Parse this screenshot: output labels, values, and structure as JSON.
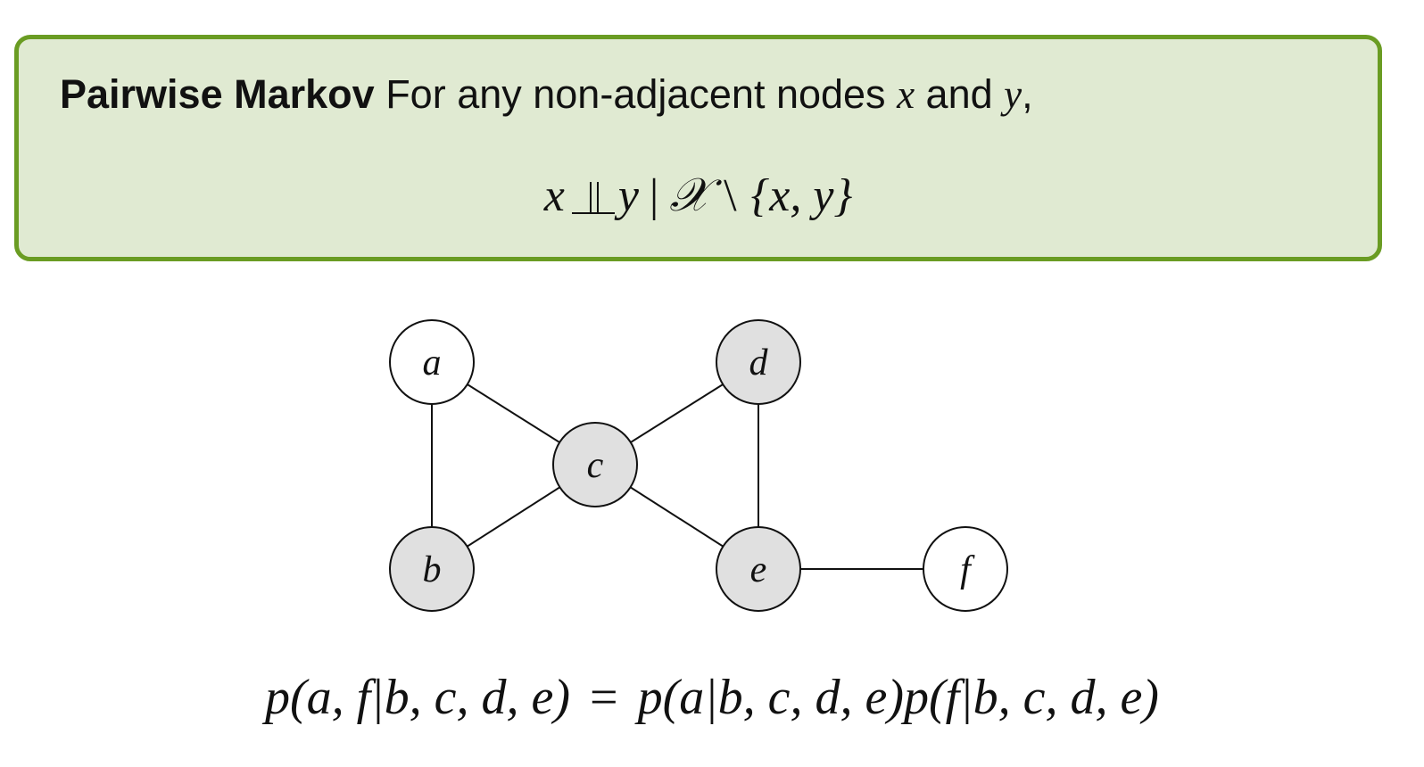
{
  "definition": {
    "term": "Pairwise Markov",
    "text_before_x": " For any non-adjacent nodes ",
    "var_x": "x",
    "text_between": " and ",
    "var_y": "y",
    "text_after": ",",
    "formula": {
      "left_var": "x",
      "right_var": "y",
      "given_bar": "|",
      "set_symbol": "𝒳",
      "setminus": "\\",
      "removed_set": "{x, y}"
    },
    "colors": {
      "box_fill": "#e0ead2",
      "box_border": "#6a9c23"
    }
  },
  "graph": {
    "nodes": [
      {
        "id": "a",
        "label": "a",
        "shaded": false
      },
      {
        "id": "b",
        "label": "b",
        "shaded": true
      },
      {
        "id": "c",
        "label": "c",
        "shaded": true
      },
      {
        "id": "d",
        "label": "d",
        "shaded": true
      },
      {
        "id": "e",
        "label": "e",
        "shaded": true
      },
      {
        "id": "f",
        "label": "f",
        "shaded": false
      }
    ],
    "edges": [
      [
        "a",
        "b"
      ],
      [
        "a",
        "c"
      ],
      [
        "b",
        "c"
      ],
      [
        "c",
        "d"
      ],
      [
        "c",
        "e"
      ],
      [
        "d",
        "e"
      ],
      [
        "e",
        "f"
      ]
    ],
    "colors": {
      "shaded_fill": "#e0e0e0",
      "unshaded_fill": "#ffffff",
      "stroke": "#111111"
    }
  },
  "equation": {
    "lhs": "p(a, f|b, c, d, e)",
    "equals": "=",
    "rhs": "p(a|b, c, d, e)p(f|b, c, d, e)"
  }
}
